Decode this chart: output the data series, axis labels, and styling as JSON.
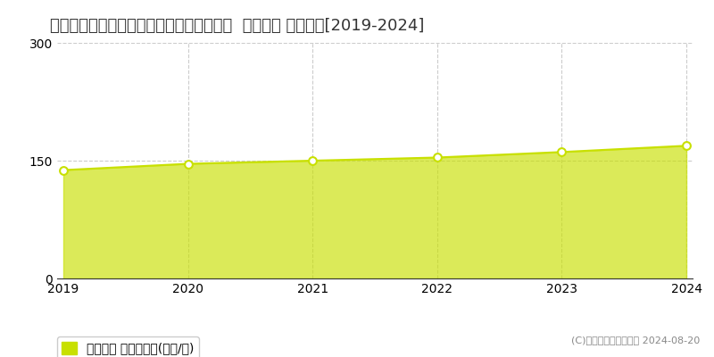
{
  "title": "宮城県仙台市青葉区上杉２丁目４９番１外  地価公示 地価推移[2019-2024]",
  "years": [
    2019,
    2020,
    2021,
    2022,
    2023,
    2024
  ],
  "values": [
    138,
    146,
    150,
    154,
    161,
    169
  ],
  "ylim": [
    0,
    300
  ],
  "yticks": [
    0,
    150,
    300
  ],
  "line_color": "#c8e000",
  "fill_color": "#c8e000",
  "fill_alpha": 0.65,
  "marker_color": "white",
  "marker_edge_color": "#c8e000",
  "background_color": "#ffffff",
  "grid_color": "#cccccc",
  "legend_label": "地価公示 平均坪単価(万円/坪)",
  "copyright_text": "(C)土地価格ドットコム 2024-08-20",
  "title_fontsize": 13,
  "axis_fontsize": 10,
  "legend_fontsize": 10
}
